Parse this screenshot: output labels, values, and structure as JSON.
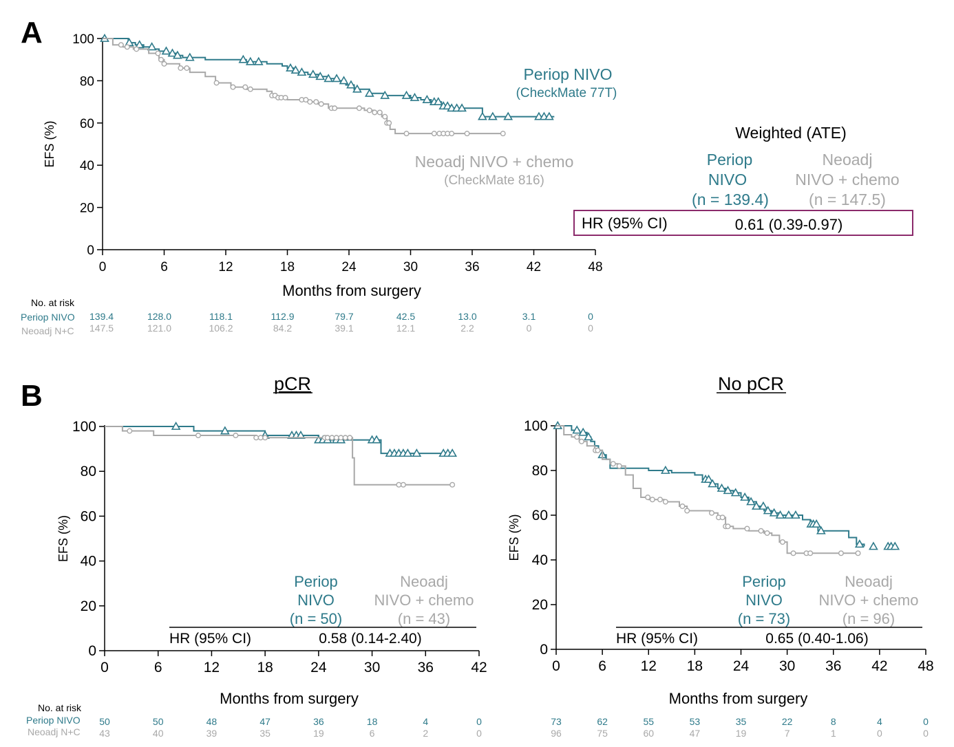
{
  "colors": {
    "nivo": "#2E7A8A",
    "chemo": "#A8A8A8",
    "box": "#8B2A6B",
    "axis": "#000000"
  },
  "chart_data": [
    {
      "panel": "A",
      "type": "line",
      "title": "",
      "ylabel": "EFS (%)",
      "xlabel": "Months from surgery",
      "xlim": [
        0,
        48
      ],
      "ylim": [
        0,
        100
      ],
      "xticks": [
        "0",
        "6",
        "12",
        "18",
        "24",
        "30",
        "36",
        "42",
        "48"
      ],
      "yticks": [
        "0",
        "20",
        "40",
        "60",
        "80",
        "100"
      ],
      "series": [
        {
          "name": "Periop NIVO",
          "subname": "(CheckMate 77T)",
          "color": "#2E7A8A",
          "marker": "triangle",
          "x": [
            0,
            2,
            2.5,
            3.2,
            4,
            5,
            5.5,
            6.3,
            7.2,
            7.8,
            10,
            14,
            16,
            17.5,
            18,
            18.6,
            19,
            20,
            21,
            22,
            23,
            23.7,
            24.5,
            26,
            27.5,
            30,
            31,
            32,
            33,
            34,
            35,
            36,
            37,
            39,
            41,
            42.2,
            43,
            44
          ],
          "y": [
            100,
            100,
            98,
            97,
            96,
            95,
            94,
            93,
            92,
            91,
            90,
            89,
            88,
            87,
            86,
            85,
            84,
            83,
            82,
            81,
            80,
            78,
            76,
            74,
            73,
            72,
            71,
            70,
            68,
            67,
            67,
            67,
            63,
            63,
            63,
            63,
            63,
            63
          ],
          "censor_x": [
            0.2,
            2.6,
            3.6,
            4.8,
            6.2,
            6.8,
            7.3,
            8.5,
            13.7,
            14.4,
            15.2,
            18.3,
            18.8,
            19.4,
            20.5,
            21.2,
            22,
            22.8,
            23.5,
            24.2,
            24.8,
            26,
            27.5,
            29.6,
            30.4,
            31.6,
            32.3,
            32.7,
            33.2,
            33.6,
            34,
            34.5,
            35,
            37,
            38,
            39.5,
            42.5,
            43,
            43.5
          ]
        },
        {
          "name": "Neoadj NIVO + chemo",
          "subname": "(CheckMate 816)",
          "color": "#A8A8A8",
          "marker": "circle",
          "x": [
            0,
            1,
            2,
            3,
            4.5,
            5.5,
            6,
            7.5,
            8.5,
            10,
            11,
            12.5,
            14,
            16,
            16.5,
            17,
            18,
            19,
            20,
            21,
            22,
            23,
            24,
            25.5,
            26.5,
            27.2,
            27.7,
            28,
            28.5,
            29,
            30,
            33,
            36,
            39
          ],
          "y": [
            100,
            97,
            96,
            95,
            93,
            90,
            88,
            86,
            84,
            82,
            79,
            77,
            76,
            75,
            73,
            72,
            71,
            71,
            70,
            69,
            67,
            67,
            67,
            66,
            65,
            63,
            60,
            57,
            55,
            55,
            55,
            55,
            55,
            55
          ],
          "censor_x": [
            1.8,
            2.4,
            3.3,
            5.4,
            5.7,
            6,
            7.6,
            8.2,
            11.1,
            12.7,
            13.9,
            14.4,
            16.5,
            16.8,
            17.1,
            17.4,
            17.8,
            19.4,
            19.8,
            20.2,
            20.8,
            21.3,
            22.3,
            22.6,
            25,
            26,
            26.5,
            27,
            27.5,
            27.7,
            27.9,
            29.6,
            32.3,
            32.8,
            33.2,
            33.6,
            34,
            35.5,
            39
          ]
        }
      ],
      "legend": {
        "weighted_title": "Weighted (ATE)",
        "periop_lines": [
          "Periop",
          "NIVO",
          "(n = 139.4)"
        ],
        "neoadj_lines": [
          "Neoadj",
          "NIVO + chemo",
          "(n = 147.5)"
        ],
        "hr_label": "HR (95% CI)",
        "hr_value": "0.61 (0.39-0.97)"
      },
      "risk_table": {
        "header": "No. at risk",
        "row_labels": [
          "Periop NIVO",
          "Neoadj N+C"
        ],
        "periop": [
          "139.4",
          "128.0",
          "118.1",
          "112.9",
          "79.7",
          "42.5",
          "13.0",
          "3.1",
          "0"
        ],
        "neoadj": [
          "147.5",
          "121.0",
          "106.2",
          "84.2",
          "39.1",
          "12.1",
          "2.2",
          "0",
          "0"
        ]
      }
    },
    {
      "panel": "B-pCR",
      "type": "line",
      "title": "pCR",
      "ylabel": "EFS (%)",
      "xlabel": "Months from surgery",
      "xlim": [
        0,
        42
      ],
      "ylim": [
        0,
        100
      ],
      "xticks": [
        "0",
        "6",
        "12",
        "18",
        "24",
        "30",
        "36",
        "42"
      ],
      "yticks": [
        "0",
        "20",
        "40",
        "60",
        "80",
        "100"
      ],
      "series": [
        {
          "name": "Periop NIVO",
          "color": "#2E7A8A",
          "marker": "triangle",
          "x": [
            0,
            10,
            18,
            24,
            31,
            39
          ],
          "y": [
            100,
            98,
            96,
            94,
            88,
            88
          ],
          "censor_x": [
            8,
            13.5,
            18,
            21,
            21.5,
            22,
            24,
            24.5,
            25,
            26,
            26.5,
            30,
            30.5,
            32,
            32.5,
            33,
            33.5,
            34,
            35,
            38,
            38.5,
            39
          ]
        },
        {
          "name": "Neoadj NIVO + chemo",
          "color": "#A8A8A8",
          "marker": "circle",
          "x": [
            0,
            2,
            5.5,
            17,
            25,
            27.8,
            28,
            39
          ],
          "y": [
            100,
            98,
            96,
            95,
            95,
            86,
            74,
            74
          ],
          "censor_x": [
            2.8,
            10.5,
            14.7,
            17,
            17.5,
            18,
            24.7,
            25,
            25.5,
            26,
            26.5,
            27,
            27.5,
            33,
            33.5,
            39
          ]
        }
      ],
      "legend": {
        "periop_lines": [
          "Periop",
          "NIVO",
          "(n = 50)"
        ],
        "neoadj_lines": [
          "Neoadj",
          "NIVO + chemo",
          "(n = 43)"
        ],
        "hr_label": "HR (95% CI)",
        "hr_value": "0.58 (0.14-2.40)"
      },
      "risk_table": {
        "header": "No. at risk",
        "row_labels": [
          "Periop NIVO",
          "Neoadj N+C"
        ],
        "periop": [
          "50",
          "50",
          "48",
          "47",
          "36",
          "18",
          "4",
          "0"
        ],
        "neoadj": [
          "43",
          "40",
          "39",
          "35",
          "19",
          "6",
          "2",
          "0"
        ]
      }
    },
    {
      "panel": "B-NopCR",
      "type": "line",
      "title": "No pCR",
      "ylabel": "EFS (%)",
      "xlabel": "Months from surgery",
      "xlim": [
        0,
        48
      ],
      "ylim": [
        0,
        100
      ],
      "xticks": [
        "0",
        "6",
        "12",
        "18",
        "24",
        "30",
        "36",
        "42",
        "48"
      ],
      "yticks": [
        "0",
        "20",
        "40",
        "60",
        "80",
        "100"
      ],
      "series": [
        {
          "name": "Periop NIVO",
          "color": "#2E7A8A",
          "marker": "triangle",
          "x": [
            0,
            2,
            3,
            4,
            4.5,
            5,
            5.5,
            6,
            6.5,
            7,
            12,
            15,
            18,
            19,
            20,
            21,
            22,
            23,
            24,
            25,
            26,
            27,
            28,
            29,
            30,
            32,
            33,
            34,
            35,
            37,
            38,
            39,
            40
          ],
          "y": [
            100,
            98,
            97,
            95,
            93,
            91,
            89,
            87,
            85,
            81,
            80,
            79,
            78,
            76,
            74,
            72,
            71,
            70,
            68,
            66,
            64,
            62,
            61,
            60,
            60,
            58,
            56,
            53,
            53,
            53,
            50,
            47,
            46
          ],
          "censor_x": [
            0.2,
            2.7,
            3.5,
            4.2,
            6,
            14.2,
            19.4,
            19.8,
            20.3,
            21.5,
            22.3,
            23.3,
            24.5,
            25.3,
            26,
            26.9,
            27.5,
            28.3,
            29.1,
            30.2,
            31.1,
            33.1,
            33.4,
            33.8,
            34.4,
            39.4,
            41.2,
            43.1,
            43.5,
            44
          ]
        },
        {
          "name": "Neoadj NIVO + chemo",
          "color": "#A8A8A8",
          "marker": "circle",
          "x": [
            0,
            1,
            2,
            3,
            4,
            5,
            6,
            7,
            8,
            9,
            10,
            11,
            12,
            14,
            16,
            17,
            20,
            21,
            22,
            23,
            25,
            27,
            28,
            29,
            30,
            32,
            39
          ],
          "y": [
            100,
            96,
            95,
            93,
            91,
            89,
            85,
            83,
            82,
            78,
            72,
            68,
            67,
            66,
            64,
            62,
            61,
            59,
            55,
            54,
            53,
            52,
            51,
            48,
            43,
            43,
            43
          ],
          "censor_x": [
            2.7,
            3.3,
            5.1,
            5.4,
            7.4,
            8.2,
            11.9,
            12.5,
            13.5,
            14.2,
            16.4,
            17,
            20.2,
            21.1,
            21.6,
            22,
            22.3,
            24.8,
            26.6,
            27.4,
            29.4,
            30.8,
            32.5,
            33,
            37,
            39.2
          ]
        }
      ],
      "legend": {
        "periop_lines": [
          "Periop",
          "NIVO",
          "(n = 73)"
        ],
        "neoadj_lines": [
          "Neoadj",
          "NIVO + chemo",
          "(n = 96)"
        ],
        "hr_label": "HR (95% CI)",
        "hr_value": "0.65 (0.40-1.06)"
      },
      "risk_table": {
        "periop": [
          "73",
          "62",
          "55",
          "53",
          "35",
          "22",
          "8",
          "4",
          "0"
        ],
        "neoadj": [
          "96",
          "75",
          "60",
          "47",
          "19",
          "7",
          "1",
          "0",
          "0"
        ]
      }
    }
  ],
  "panel_labels": [
    "A",
    "B"
  ]
}
